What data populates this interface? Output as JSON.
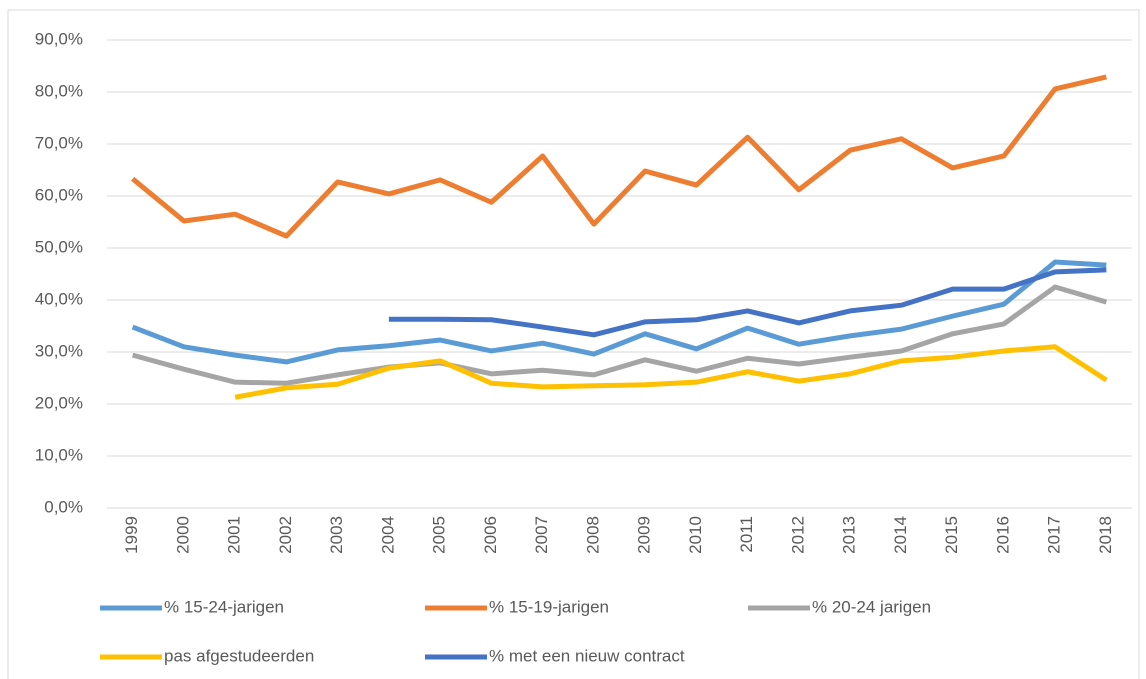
{
  "chart_data": {
    "type": "line",
    "categories": [
      "1999",
      "2000",
      "2001",
      "2002",
      "2003",
      "2004",
      "2005",
      "2006",
      "2007",
      "2008",
      "2009",
      "2010",
      "2011",
      "2012",
      "2013",
      "2014",
      "2015",
      "2016",
      "2017",
      "2018"
    ],
    "series": [
      {
        "name": "% 15-24-jarigen",
        "color": "#5b9bd5",
        "values": [
          34.8,
          31.0,
          29.4,
          28.1,
          30.4,
          31.2,
          32.3,
          30.2,
          31.7,
          29.6,
          33.5,
          30.6,
          34.6,
          31.5,
          33.1,
          34.4,
          36.9,
          39.2,
          47.3,
          46.7
        ]
      },
      {
        "name": "% 15-19-jarigen",
        "color": "#ed7d31",
        "values": [
          63.3,
          55.2,
          56.5,
          52.3,
          62.7,
          60.4,
          63.1,
          58.8,
          67.7,
          54.6,
          64.8,
          62.1,
          71.3,
          61.2,
          68.8,
          71.0,
          65.4,
          67.7,
          80.6,
          82.9
        ]
      },
      {
        "name": "% 20-24 jarigen",
        "color": "#a5a5a5",
        "values": [
          29.4,
          26.7,
          24.2,
          24.0,
          25.6,
          27.1,
          27.9,
          25.8,
          26.5,
          25.6,
          28.5,
          26.3,
          28.8,
          27.7,
          29.0,
          30.2,
          33.5,
          35.4,
          42.5,
          39.6
        ]
      },
      {
        "name": "pas afgestudeerden",
        "color": "#ffc000",
        "values": [
          null,
          null,
          21.3,
          23.1,
          23.8,
          26.9,
          28.3,
          24.0,
          23.3,
          23.5,
          23.7,
          24.2,
          26.2,
          24.4,
          25.8,
          28.3,
          29.0,
          30.2,
          31.0,
          24.6
        ]
      },
      {
        "name": "% met een nieuw contract",
        "color": "#4472c4",
        "values": [
          null,
          null,
          null,
          null,
          null,
          36.3,
          36.3,
          36.2,
          34.8,
          33.3,
          35.8,
          36.2,
          37.9,
          35.6,
          37.9,
          39.0,
          42.1,
          42.1,
          45.4,
          45.8
        ]
      }
    ],
    "ylim": [
      0,
      90
    ],
    "yticks": [
      {
        "value": 0,
        "label": "0,0%"
      },
      {
        "value": 10,
        "label": "10,0%"
      },
      {
        "value": 20,
        "label": "20,0%"
      },
      {
        "value": 30,
        "label": "30,0%"
      },
      {
        "value": 40,
        "label": "40,0%"
      },
      {
        "value": 50,
        "label": "50,0%"
      },
      {
        "value": 60,
        "label": "60,0%"
      },
      {
        "value": 70,
        "label": "70,0%"
      },
      {
        "value": 80,
        "label": "80,0%"
      },
      {
        "value": 90,
        "label": "90,0%"
      }
    ],
    "grid": true
  }
}
